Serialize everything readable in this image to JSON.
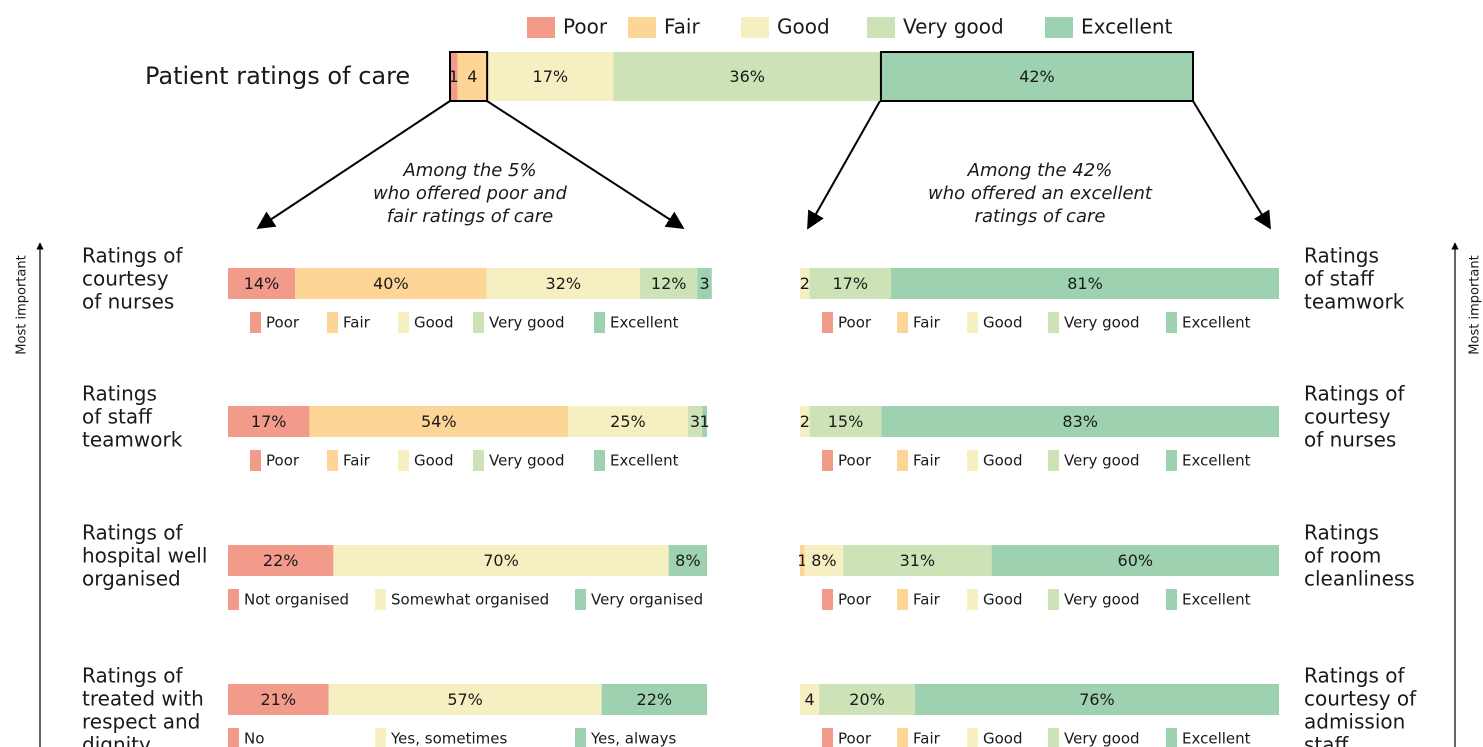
{
  "chart_data": {
    "type": "stacked-bar",
    "title": "Patient ratings of care",
    "xlim": [
      0,
      100
    ],
    "categories": [
      "Poor",
      "Fair",
      "Good",
      "Very good",
      "Excellent"
    ],
    "colors": [
      "#f29b8b",
      "#fdd596",
      "#f5efc2",
      "#cde3b7",
      "#9dd1b0"
    ],
    "values": [
      1,
      4,
      17,
      36,
      42
    ],
    "value_labels": [
      "1",
      "4",
      "17%",
      "36%",
      "42%"
    ],
    "annotations": [
      [
        "Among the 5%",
        "who offered poor and",
        "fair ratings of care"
      ],
      [
        "Among the 42%",
        "who offered an excellent",
        "ratings of care"
      ]
    ],
    "side_label": "Most important",
    "left": [
      {
        "label": [
          "Ratings of",
          "courtesy",
          "of nurses"
        ],
        "categories": [
          "Poor",
          "Fair",
          "Good",
          "Very good",
          "Excellent"
        ],
        "colors": [
          "#f29b8b",
          "#fdd596",
          "#f5efc2",
          "#cde3b7",
          "#9dd1b0"
        ],
        "values": [
          14,
          40,
          32,
          12,
          3
        ],
        "value_labels": [
          "14%",
          "40%",
          "32%",
          "12%",
          "3"
        ]
      },
      {
        "label": [
          "Ratings",
          "of staff",
          "teamwork"
        ],
        "categories": [
          "Poor",
          "Fair",
          "Good",
          "Very good",
          "Excellent"
        ],
        "colors": [
          "#f29b8b",
          "#fdd596",
          "#f5efc2",
          "#cde3b7",
          "#9dd1b0"
        ],
        "values": [
          17,
          54,
          25,
          3,
          1
        ],
        "value_labels": [
          "17%",
          "54%",
          "25%",
          "3",
          "1"
        ]
      },
      {
        "label": [
          "Ratings of",
          "hospital well",
          "organised"
        ],
        "categories": [
          "Not organised",
          "Somewhat organised",
          "Very organised"
        ],
        "colors": [
          "#f29b8b",
          "#f5efc2",
          "#9dd1b0"
        ],
        "values": [
          22,
          70,
          8
        ],
        "value_labels": [
          "22%",
          "70%",
          "8%"
        ]
      },
      {
        "label": [
          "Ratings of",
          "treated with",
          "respect and",
          "dignity"
        ],
        "categories": [
          "No",
          "Yes, sometimes",
          "Yes, always"
        ],
        "colors": [
          "#f29b8b",
          "#f5efc2",
          "#9dd1b0"
        ],
        "values": [
          21,
          57,
          22
        ],
        "value_labels": [
          "21%",
          "57%",
          "22%"
        ]
      }
    ],
    "right": [
      {
        "label": [
          "Ratings",
          "of staff",
          "teamwork"
        ],
        "categories": [
          "Poor",
          "Fair",
          "Good",
          "Very good",
          "Excellent"
        ],
        "colors": [
          "#f29b8b",
          "#fdd596",
          "#f5efc2",
          "#cde3b7",
          "#9dd1b0"
        ],
        "values": [
          0,
          0,
          2,
          17,
          81
        ],
        "value_labels": [
          null,
          null,
          "2",
          "17%",
          "81%"
        ]
      },
      {
        "label": [
          "Ratings of",
          "courtesy",
          "of nurses"
        ],
        "categories": [
          "Poor",
          "Fair",
          "Good",
          "Very good",
          "Excellent"
        ],
        "colors": [
          "#f29b8b",
          "#fdd596",
          "#f5efc2",
          "#cde3b7",
          "#9dd1b0"
        ],
        "values": [
          0,
          0,
          2,
          15,
          83
        ],
        "value_labels": [
          null,
          null,
          "2",
          "15%",
          "83%"
        ]
      },
      {
        "label": [
          "Ratings",
          "of room",
          "cleanliness"
        ],
        "categories": [
          "Poor",
          "Fair",
          "Good",
          "Very good",
          "Excellent"
        ],
        "colors": [
          "#f29b8b",
          "#fdd596",
          "#f5efc2",
          "#cde3b7",
          "#9dd1b0"
        ],
        "values": [
          0,
          1,
          8,
          31,
          60
        ],
        "value_labels": [
          null,
          "1",
          "8%",
          "31%",
          "60%"
        ]
      },
      {
        "label": [
          "Ratings of",
          "courtesy of",
          "admission",
          "staff"
        ],
        "categories": [
          "Poor",
          "Fair",
          "Good",
          "Very good",
          "Excellent"
        ],
        "colors": [
          "#f29b8b",
          "#fdd596",
          "#f5efc2",
          "#cde3b7",
          "#9dd1b0"
        ],
        "values": [
          0,
          0,
          4,
          20,
          76
        ],
        "value_labels": [
          null,
          null,
          "4",
          "20%",
          "76%"
        ]
      }
    ]
  }
}
